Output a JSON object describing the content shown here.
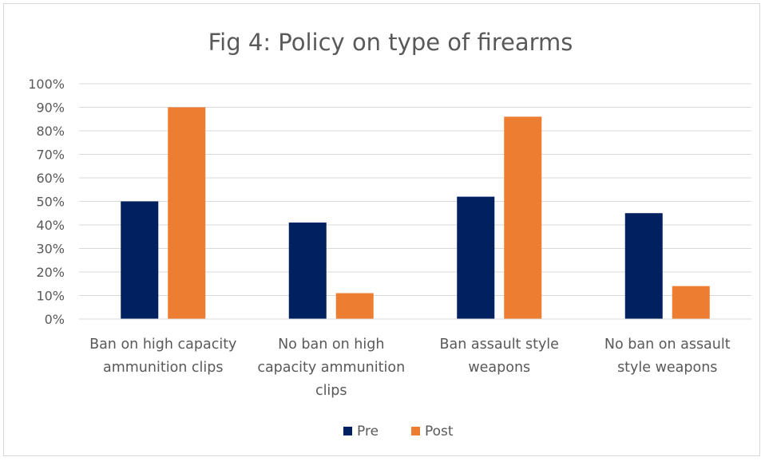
{
  "chart_data": {
    "type": "bar",
    "title": "Fig 4: Policy on type of firearms",
    "xlabel": "",
    "ylabel": "",
    "ylim": [
      0,
      100
    ],
    "yticks": [
      "0%",
      "10%",
      "20%",
      "30%",
      "40%",
      "50%",
      "60%",
      "70%",
      "80%",
      "90%",
      "100%"
    ],
    "categories": [
      [
        "Ban on high capacity",
        "ammunition clips"
      ],
      [
        "No ban on high",
        "capacity ammunition",
        "clips"
      ],
      [
        "Ban assault style",
        "weapons"
      ],
      [
        "No ban on assault",
        "style weapons"
      ]
    ],
    "series": [
      {
        "name": "Pre",
        "color": "#002060",
        "values": [
          50,
          41,
          52,
          45
        ]
      },
      {
        "name": "Post",
        "color": "#ed7d31",
        "values": [
          90,
          11,
          86,
          14
        ]
      }
    ],
    "grid": true,
    "legend": "bottom"
  }
}
